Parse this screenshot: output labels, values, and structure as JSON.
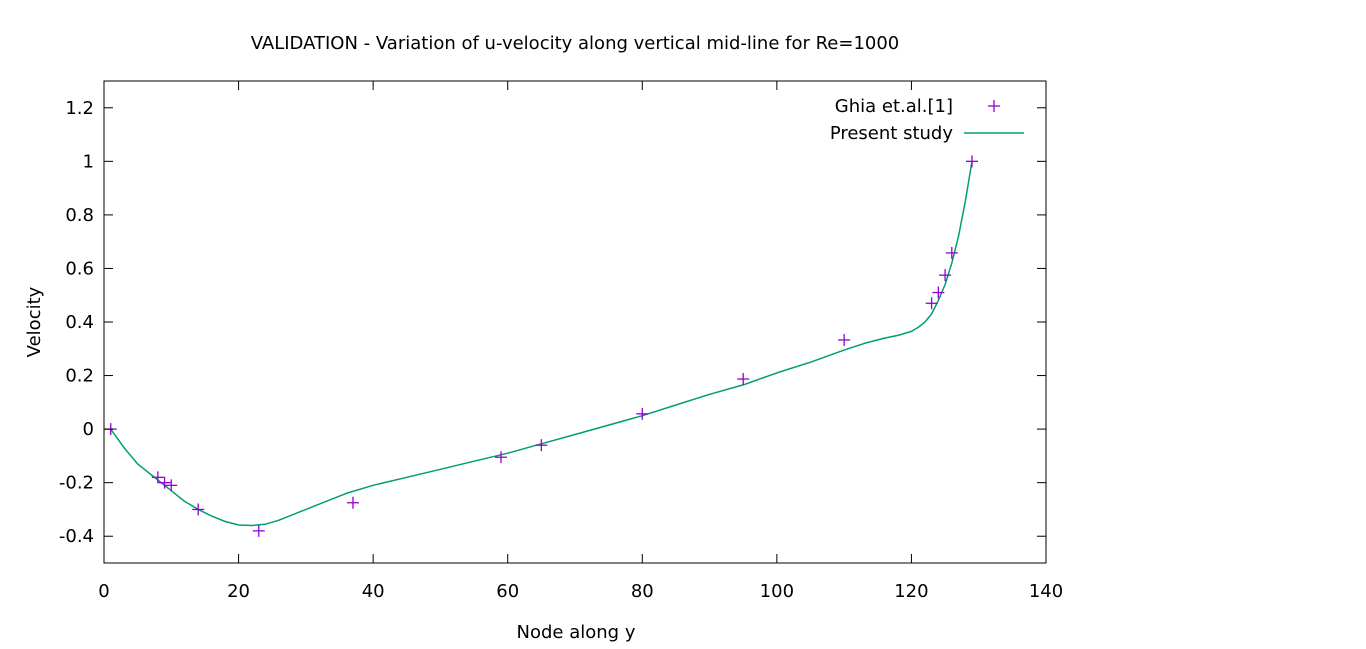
{
  "chart_data": {
    "type": "scatter",
    "title": "VALIDATION - Variation of u-velocity along vertical mid-line for Re=1000",
    "xlabel": "Node along y",
    "ylabel": "Velocity",
    "xlim": [
      0,
      140
    ],
    "ylim": [
      -0.5,
      1.3
    ],
    "xticks": [
      "0",
      "20",
      "40",
      "60",
      "80",
      "100",
      "120",
      "140"
    ],
    "yticks": [
      "-0.4",
      "-0.2",
      "0",
      "0.2",
      "0.4",
      "0.6",
      "0.8",
      "1",
      "1.2"
    ],
    "grid": false,
    "legend_position": "top-right",
    "series": [
      {
        "name": "Ghia et.al.[1]",
        "kind": "points",
        "marker": "plus",
        "color": "#9400d3",
        "x": [
          1,
          8,
          9,
          10,
          14,
          23,
          37,
          59,
          65,
          80,
          95,
          110,
          123,
          124,
          125,
          126,
          129
        ],
        "y": [
          0.0,
          -0.18,
          -0.2,
          -0.21,
          -0.3,
          -0.38,
          -0.275,
          -0.105,
          -0.06,
          0.057,
          0.187,
          0.333,
          0.47,
          0.51,
          0.575,
          0.658,
          1.0
        ]
      },
      {
        "name": "Present study",
        "kind": "line",
        "color": "#009e73",
        "x": [
          1,
          3,
          5,
          8,
          10,
          12,
          14,
          16,
          18,
          20,
          22,
          24,
          26,
          28,
          30,
          33,
          36,
          40,
          45,
          50,
          55,
          60,
          65,
          70,
          75,
          80,
          85,
          90,
          95,
          100,
          105,
          110,
          113,
          116,
          118,
          120,
          121,
          122,
          123,
          124,
          125,
          126,
          127,
          128,
          129
        ],
        "y": [
          0.0,
          -0.07,
          -0.13,
          -0.19,
          -0.23,
          -0.27,
          -0.3,
          -0.325,
          -0.345,
          -0.358,
          -0.36,
          -0.355,
          -0.34,
          -0.32,
          -0.3,
          -0.27,
          -0.24,
          -0.21,
          -0.18,
          -0.15,
          -0.12,
          -0.09,
          -0.055,
          -0.02,
          0.015,
          0.05,
          0.09,
          0.13,
          0.165,
          0.21,
          0.25,
          0.295,
          0.32,
          0.34,
          0.35,
          0.365,
          0.38,
          0.4,
          0.43,
          0.48,
          0.54,
          0.62,
          0.72,
          0.85,
          1.0
        ]
      }
    ]
  }
}
